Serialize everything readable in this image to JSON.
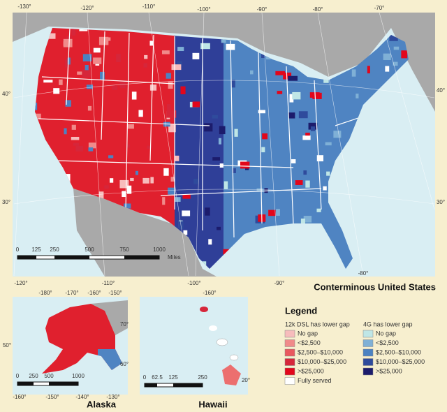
{
  "main_map": {
    "title": "Conterminous United States",
    "top_longitude_labels": [
      "-130°",
      "-120°",
      "-110°",
      "-100°",
      "-90°",
      "-80°",
      "-70°"
    ],
    "bottom_longitude_labels": [
      "-120°",
      "-110°",
      "-100°",
      "-90°",
      "-80°"
    ],
    "left_latitude_labels": [
      "40°",
      "30°"
    ],
    "right_latitude_labels": [
      "40°",
      "30°"
    ],
    "scale": {
      "ticks": [
        "0",
        "125",
        "250",
        "500",
        "750",
        "1000"
      ],
      "unit": "Miles"
    }
  },
  "alaska": {
    "title": "Alaska",
    "top_longitude_labels": [
      "-180°",
      "-170°",
      "-160°",
      "-150°"
    ],
    "bottom_longitude_labels": [
      "-160°",
      "-150°",
      "-140°",
      "-130°"
    ],
    "left_latitude_labels": [
      "50°"
    ],
    "right_latitude_labels": [
      "70°",
      "60°"
    ],
    "scale": {
      "ticks": [
        "0",
        "250",
        "500",
        "1000"
      ]
    }
  },
  "hawaii": {
    "title": "Hawaii",
    "longitude_labels": [
      "-160°"
    ],
    "latitude_labels": [
      "20°"
    ],
    "scale": {
      "ticks": [
        "0",
        "62.5",
        "125",
        "250"
      ]
    }
  },
  "legend": {
    "title": "Legend",
    "groups": [
      {
        "heading": "12k DSL has lower gap",
        "items": [
          {
            "label": "No gap",
            "color": "#f7bcbc"
          },
          {
            "label": "<$2,500",
            "color": "#f08a8a"
          },
          {
            "label": "$2,500–$10,000",
            "color": "#e9585f"
          },
          {
            "label": "$10,000–$25,000",
            "color": "#d6263a"
          },
          {
            "label": ">$25,000",
            "color": "#e2061b"
          },
          {
            "label": "Fully served",
            "color": "#ffffff"
          }
        ]
      },
      {
        "heading": "4G has lower gap",
        "items": [
          {
            "label": "No gap",
            "color": "#bfe6e6"
          },
          {
            "label": "<$2,500",
            "color": "#7fb0d6"
          },
          {
            "label": "$2,500–$10,000",
            "color": "#4c82c2"
          },
          {
            "label": "$10,000–$25,000",
            "color": "#2f4b9c"
          },
          {
            "label": ">$25,000",
            "color": "#1c1c6c"
          }
        ]
      }
    ]
  }
}
